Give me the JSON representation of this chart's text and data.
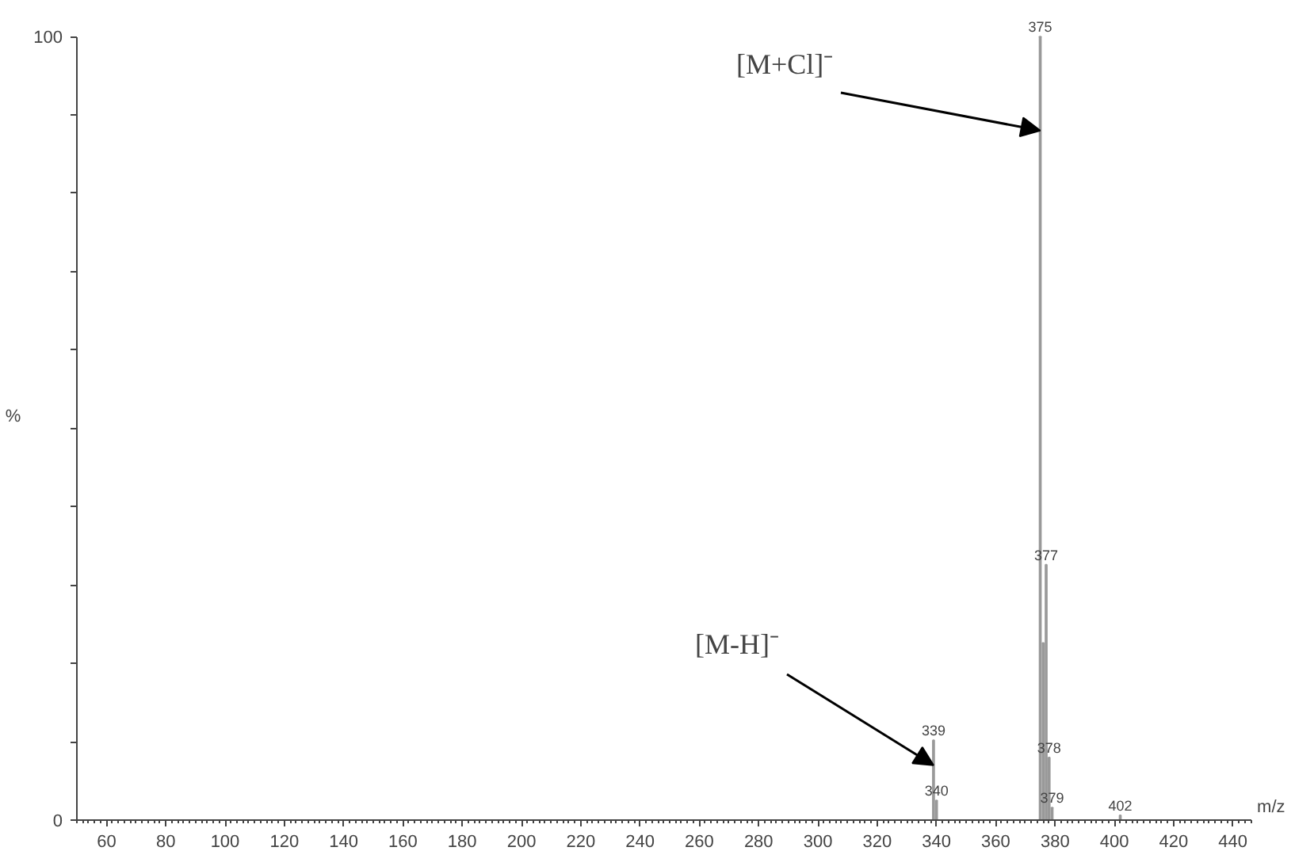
{
  "chart_data": {
    "type": "bar",
    "xlabel": "m/z",
    "ylabel": "%",
    "x": [
      339,
      340,
      375,
      376,
      377,
      378,
      379,
      402
    ],
    "values": [
      10.2,
      2.5,
      100,
      22.6,
      32.6,
      8,
      1.6,
      0.6
    ],
    "color": "#999999",
    "xlim": [
      50,
      446
    ],
    "xticks": [
      60,
      80,
      100,
      120,
      140,
      160,
      180,
      200,
      220,
      240,
      260,
      280,
      300,
      320,
      340,
      360,
      380,
      400,
      420,
      440
    ],
    "ylim": [
      0,
      100
    ],
    "yticks": [
      0,
      {
        "value": 10,
        "label": null
      },
      {
        "value": 20,
        "label": null
      },
      {
        "value": 30,
        "label": null
      },
      {
        "value": 40,
        "label": null
      },
      {
        "value": 50,
        "label": null
      },
      {
        "value": 60,
        "label": null
      },
      {
        "value": 70,
        "label": null
      },
      {
        "value": 80,
        "label": null
      },
      {
        "value": 90,
        "label": null
      },
      100
    ],
    "annotations": [
      {
        "text": "[M+Cl]⁻",
        "x": 375,
        "y": 88
      },
      {
        "text": "[M-H]⁻",
        "x": 339,
        "y": 7
      },
      {
        "text": "339",
        "x": 339,
        "y": 10.2
      },
      {
        "text": "340",
        "x": 340,
        "y": 2.5
      },
      {
        "text": "375",
        "x": 375,
        "y": 100
      },
      {
        "text": "377",
        "x": 377,
        "y": 32.6
      },
      {
        "text": "378",
        "x": 378,
        "y": 8
      },
      {
        "text": "379",
        "x": 379,
        "y": 1.6
      },
      {
        "text": "402",
        "x": 402,
        "y": 0.6
      }
    ],
    "grid": false
  }
}
